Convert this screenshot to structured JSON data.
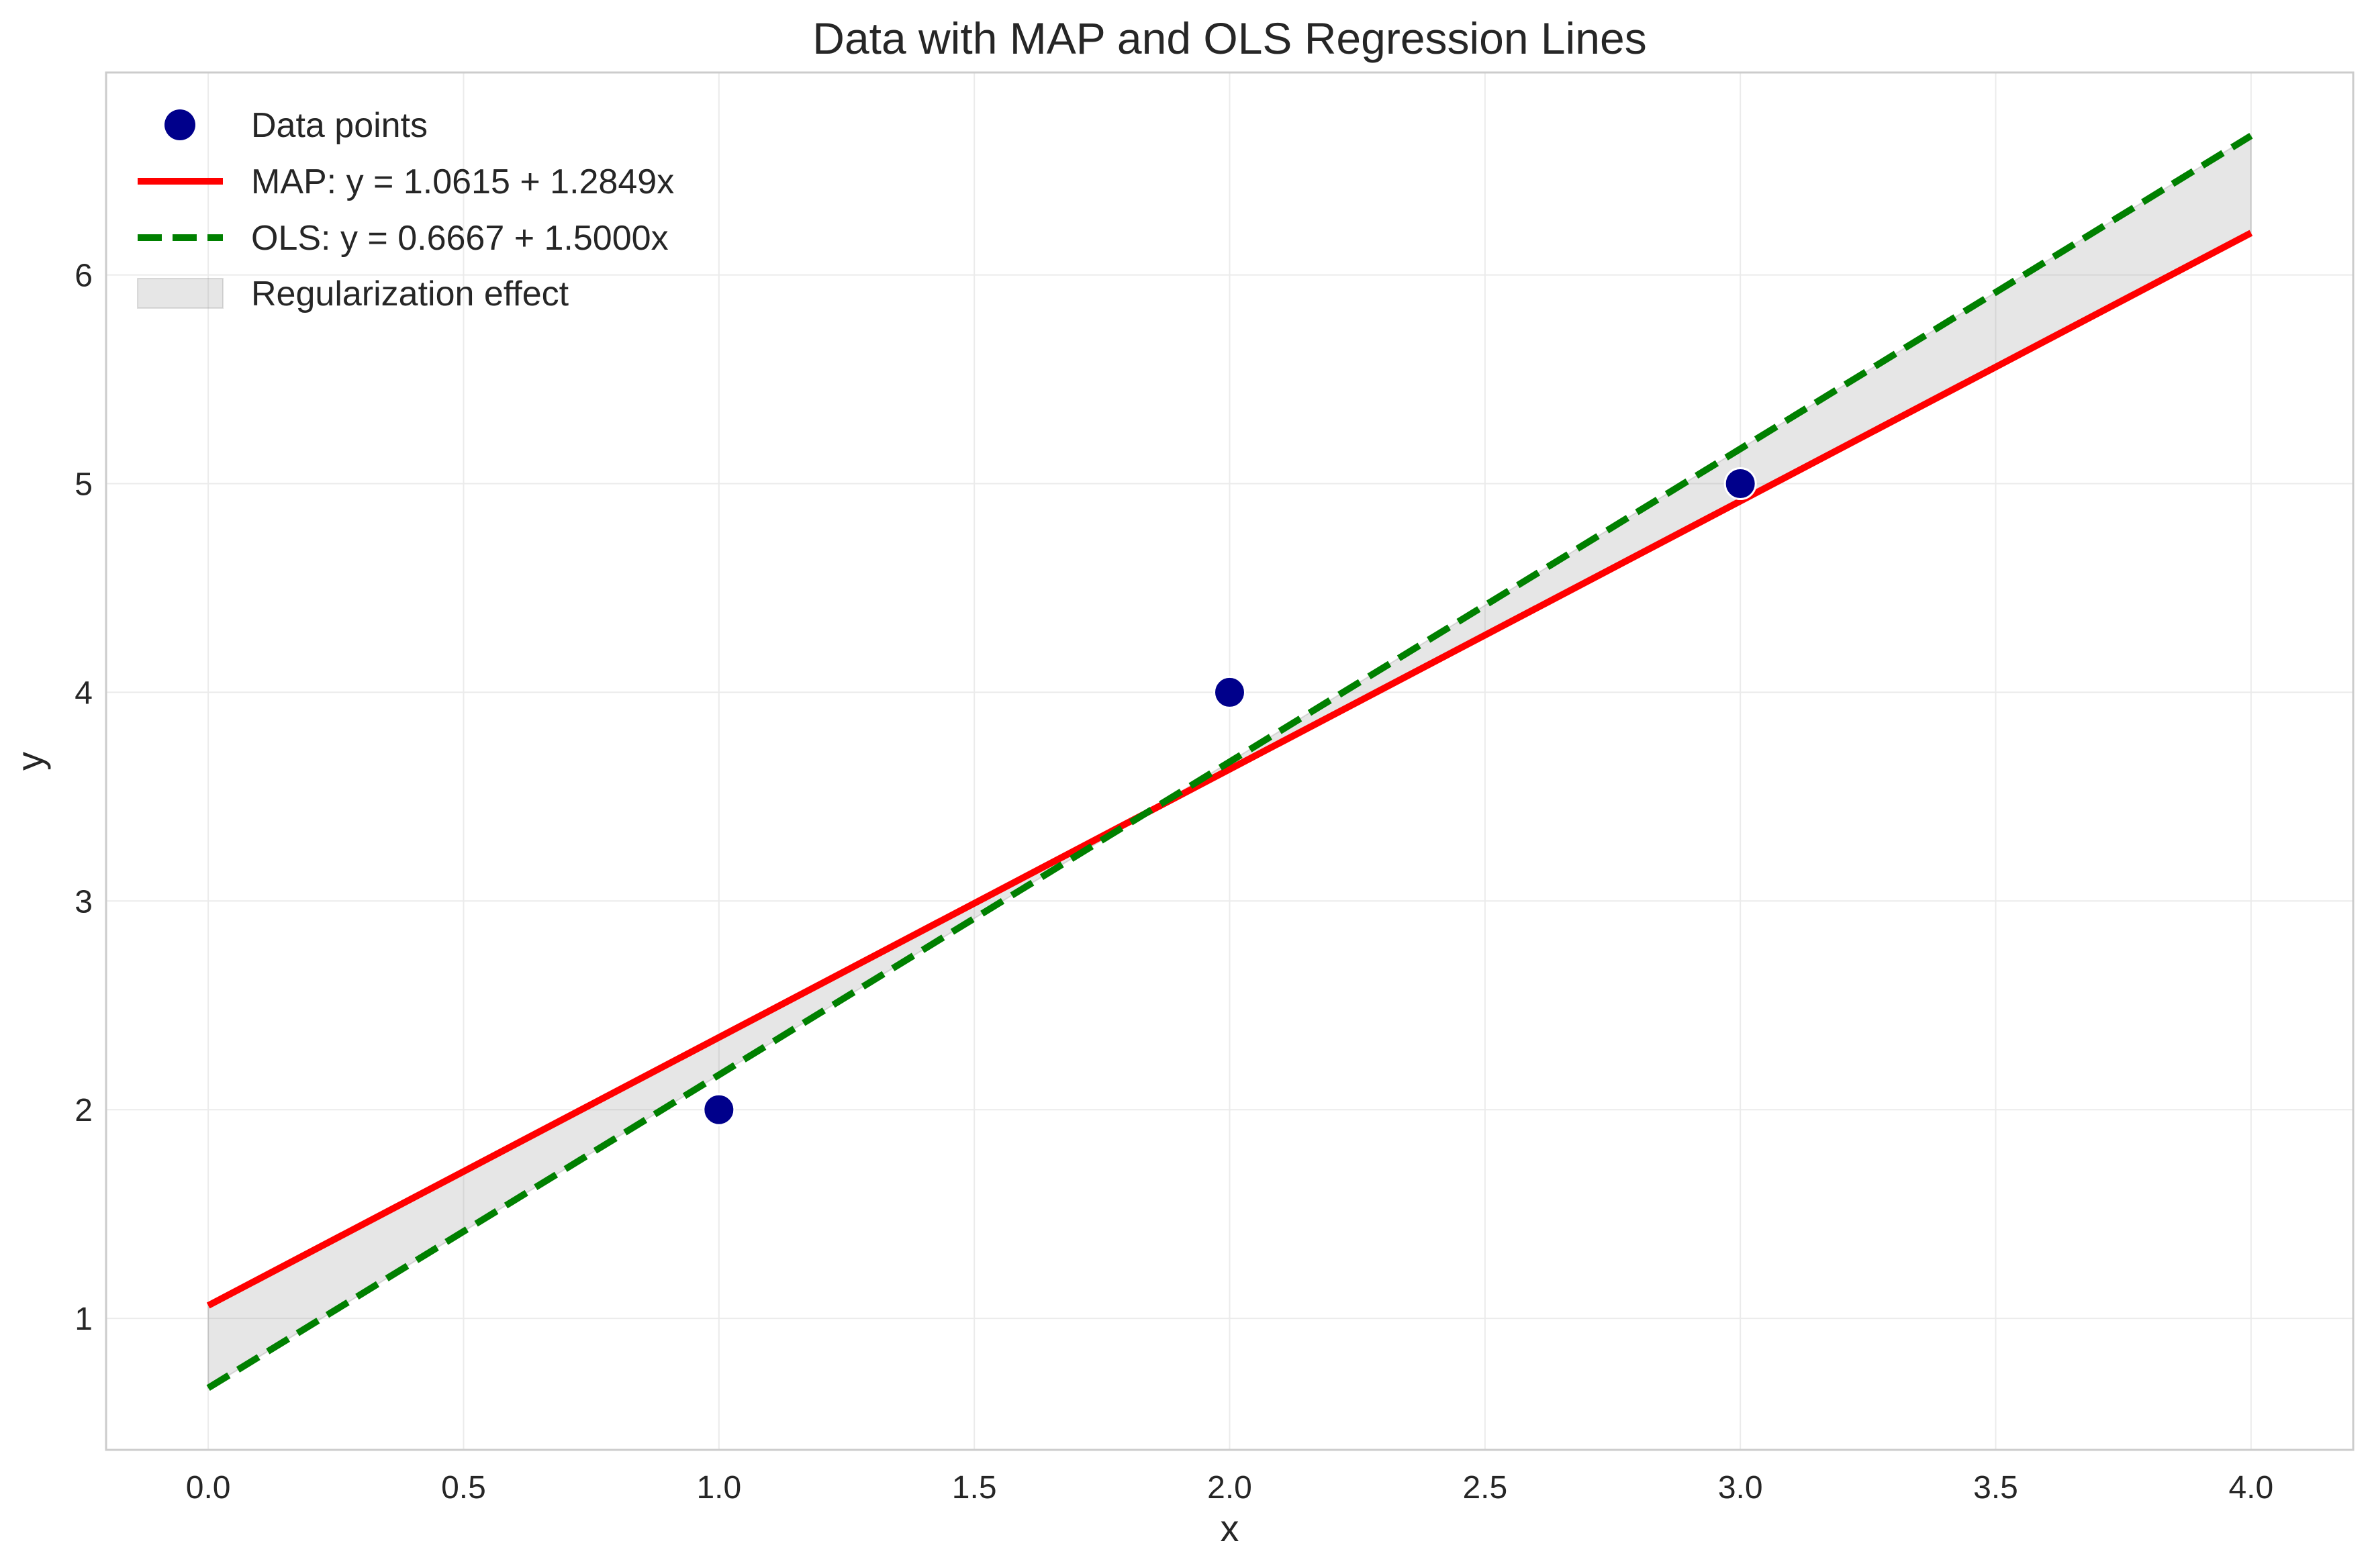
{
  "chart_data": {
    "type": "line",
    "title": "Data with MAP and OLS Regression Lines",
    "xlabel": "x",
    "ylabel": "y",
    "xlim": [
      -0.2,
      4.2
    ],
    "ylim": [
      0.37,
      6.97
    ],
    "xticks": [
      0.0,
      0.5,
      1.0,
      1.5,
      2.0,
      2.5,
      3.0,
      3.5,
      4.0
    ],
    "xtick_labels": [
      "0.0",
      "0.5",
      "1.0",
      "1.5",
      "2.0",
      "2.5",
      "3.0",
      "3.5",
      "4.0"
    ],
    "yticks": [
      1,
      2,
      3,
      4,
      5,
      6
    ],
    "ytick_labels": [
      "1",
      "2",
      "3",
      "4",
      "5",
      "6"
    ],
    "grid": true,
    "legend_position": "top-left",
    "scatter": {
      "name": "Data points",
      "color": "#00008b",
      "x": [
        1,
        2,
        3
      ],
      "y": [
        2,
        4,
        5
      ]
    },
    "series": [
      {
        "name": "MAP: y = 1.0615 + 1.2849x",
        "style": "solid",
        "color": "#ff0000",
        "x": [
          0,
          4
        ],
        "y": [
          1.0615,
          6.2011
        ]
      },
      {
        "name": "OLS: y = 0.6667 + 1.5000x",
        "style": "dashed",
        "color": "#008000",
        "x": [
          0,
          4
        ],
        "y": [
          0.6667,
          6.6667
        ]
      }
    ],
    "fill_between": {
      "name": "Regularization effect",
      "color": "#808080",
      "x": [
        0,
        4
      ],
      "y1": [
        1.0615,
        6.2011
      ],
      "y2": [
        0.6667,
        6.6667
      ]
    }
  }
}
